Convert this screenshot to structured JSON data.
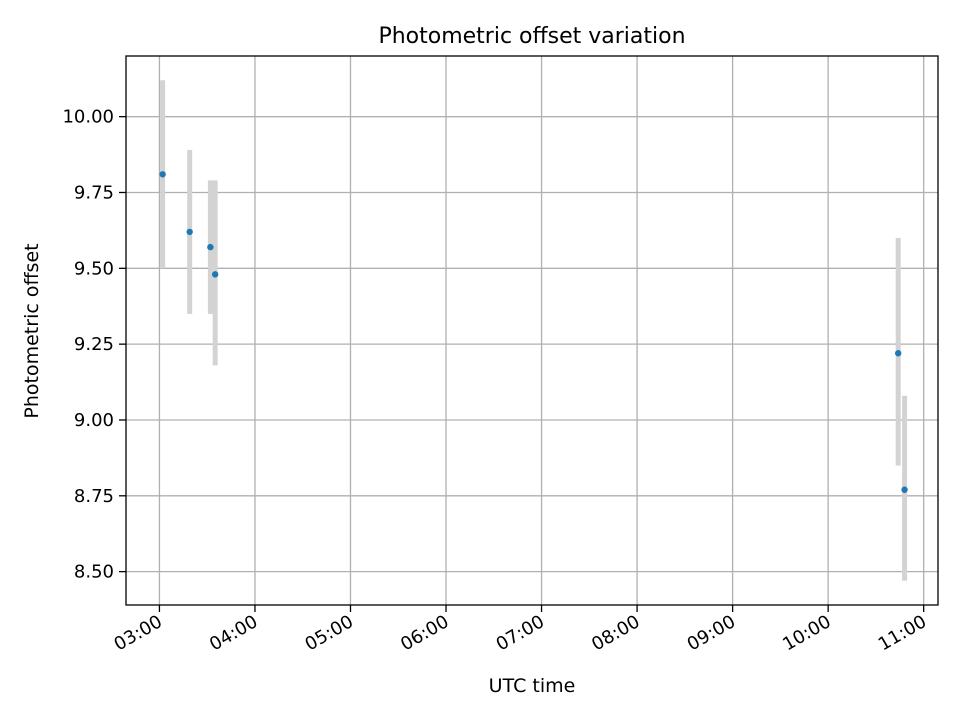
{
  "chart_data": {
    "type": "scatter",
    "title": "Photometric offset variation",
    "xlabel": "UTC time",
    "ylabel": "Photometric offset",
    "x_axis_kind": "time",
    "xlim": [
      "02:39",
      "11:09"
    ],
    "ylim": [
      8.39,
      10.2
    ],
    "grid": true,
    "x_ticks": [
      "03:00",
      "04:00",
      "05:00",
      "06:00",
      "07:00",
      "08:00",
      "09:00",
      "10:00",
      "11:00"
    ],
    "y_ticks": [
      "8.50",
      "8.75",
      "9.00",
      "9.25",
      "9.50",
      "9.75",
      "10.00"
    ],
    "marker_color": "#1f77b4",
    "errorbar_color": "#d3d3d3",
    "points": [
      {
        "x": "03:02",
        "y": 9.81,
        "yerr_low": 9.5,
        "yerr_high": 10.12
      },
      {
        "x": "03:19",
        "y": 9.62,
        "yerr_low": 9.35,
        "yerr_high": 9.89
      },
      {
        "x": "03:32",
        "y": 9.57,
        "yerr_low": 9.35,
        "yerr_high": 9.79
      },
      {
        "x": "03:35",
        "y": 9.48,
        "yerr_low": 9.18,
        "yerr_high": 9.79
      },
      {
        "x": "10:44",
        "y": 9.22,
        "yerr_low": 8.85,
        "yerr_high": 9.6
      },
      {
        "x": "10:48",
        "y": 8.77,
        "yerr_low": 8.47,
        "yerr_high": 9.08
      }
    ]
  }
}
